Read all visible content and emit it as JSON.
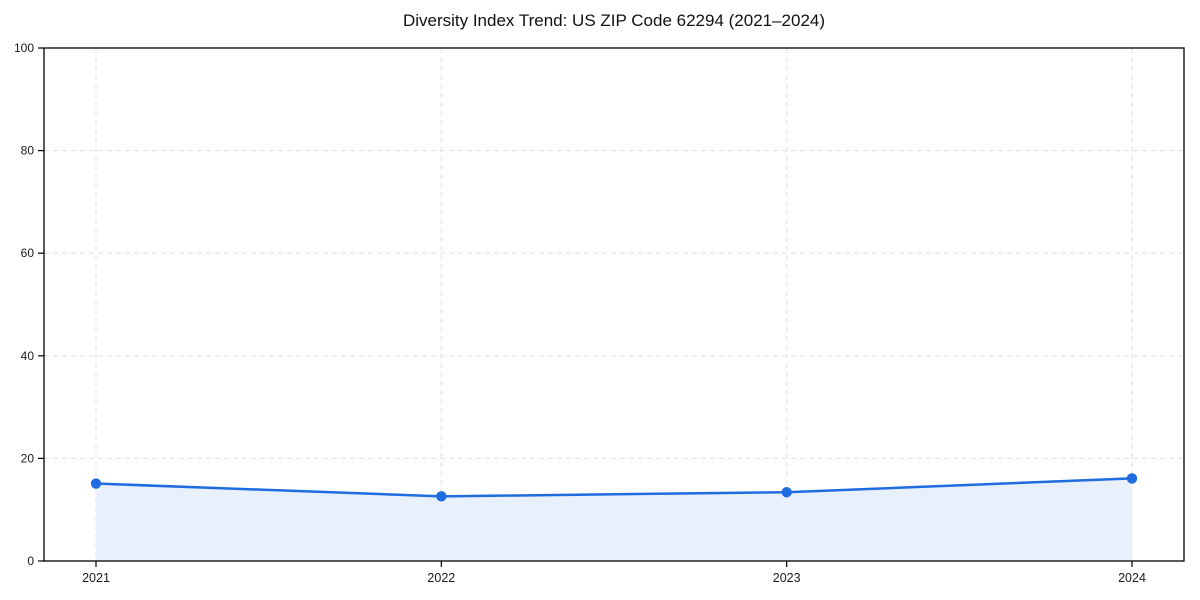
{
  "chart_data": {
    "type": "area",
    "title": "Diversity Index Trend: US ZIP Code 62294 (2021–2024)",
    "categories": [
      "2021",
      "2022",
      "2023",
      "2024"
    ],
    "values": [
      15.1,
      12.6,
      13.4,
      16.1
    ],
    "xlabel": "",
    "ylabel": "",
    "ylim": [
      0,
      100
    ],
    "yticks": [
      0,
      20,
      40,
      60,
      80,
      100
    ],
    "grid": "dashed-both-axes",
    "legend": "none",
    "colors": {
      "line": "#1f6ce0",
      "marker": "#1f6ce0",
      "fill": "#e8f0fc",
      "grid": "#e0e0e0",
      "axis": "#000000",
      "tick_text": "#1a1a1a"
    }
  }
}
